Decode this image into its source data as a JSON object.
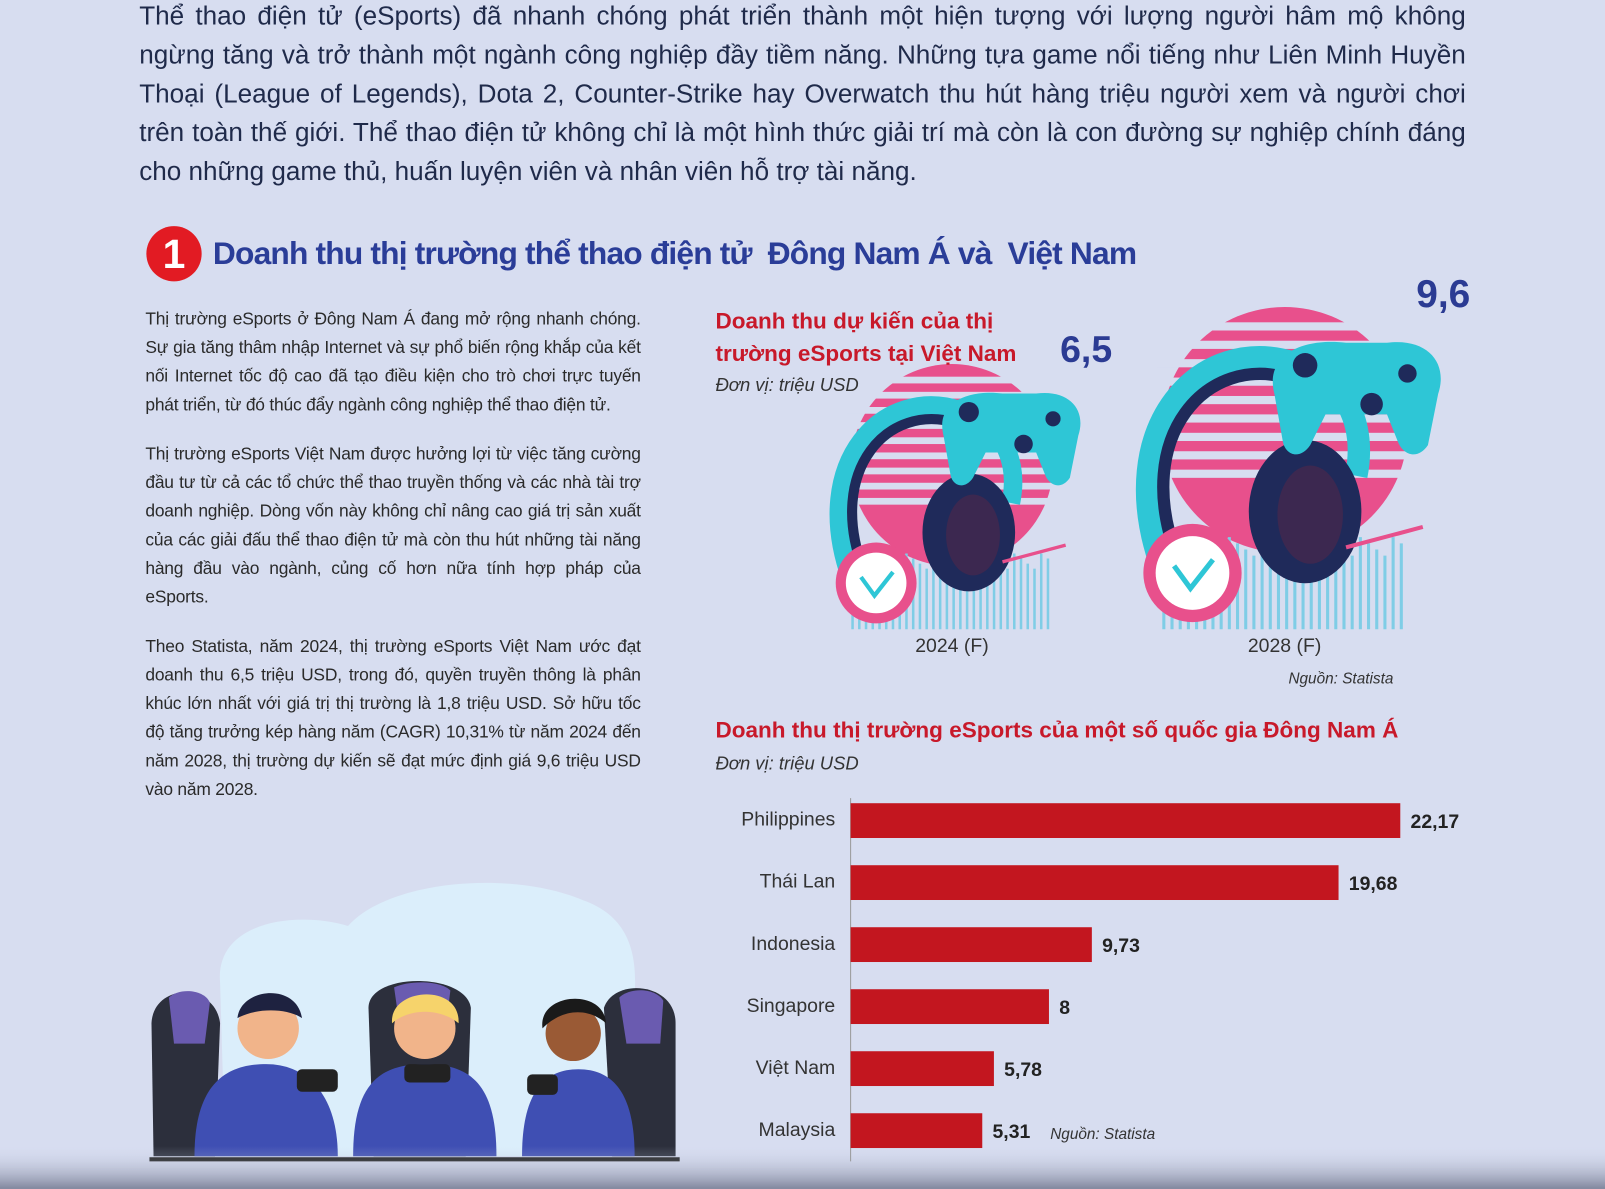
{
  "intro": "Thể thao điện tử (eSports) đã nhanh chóng phát triển thành một hiện tượng với lượng người hâm mộ không ngừng tăng và trở thành một ngành công nghiệp đầy tiềm năng. Những tựa game nổi tiếng như Liên Minh Huyền Thoại (League of Legends), Dota 2, Counter-Strike hay Overwatch thu hút hàng triệu người xem và người chơi trên toàn thế giới. Thể thao điện tử không chỉ là một hình thức giải trí mà còn là con đường sự nghiệp chính đáng cho những game thủ, huấn luyện viên và nhân viên hỗ trợ tài năng.",
  "section": {
    "number": "1",
    "title": "Doanh thu thị trường thể thao điện tử  Đông Nam Á và  Việt Nam"
  },
  "body": [
    "Thị trường eSports ở Đông Nam Á đang mở rộng nhanh chóng. Sự gia tăng thâm nhập Internet và sự phổ biến rộng khắp của kết nối Internet tốc độ cao đã tạo điều kiện cho trò chơi trực tuyến phát triển, từ đó thúc đẩy ngành công nghiệp thể thao điện tử.",
    "Thị trường eSports Việt Nam được hưởng lợi từ việc tăng cường đầu tư từ cả các tổ chức thể thao truyền thống và các nhà tài trợ doanh nghiệp. Dòng vốn này không chỉ nâng cao giá trị sản xuất của các giải đấu thể thao điện tử mà còn thu hút những tài năng hàng đầu vào ngành, củng cố hơn nữa tính hợp pháp của eSports.",
    "Theo Statista, năm 2024, thị trường eSports Việt Nam ước đạt doanh thu 6,5 triệu USD, trong đó, quyền truyền thông là phân khúc lớn nhất với giá trị thị trường là 1,8 triệu USD. Sở hữu tốc độ tăng trưởng kép hàng năm (CAGR) 10,31% từ năm 2024 đến năm 2028, thị trường dự kiến sẽ đạt mức định giá 9,6 triệu USD vào năm 2028."
  ],
  "chart_data": [
    {
      "type": "pictogram",
      "title": "Doanh thu dự kiến của thị trường eSports tại Việt Nam",
      "subtitle": "Đơn vị: triệu USD",
      "categories": [
        "2024 (F)",
        "2028 (F)"
      ],
      "values": [
        6.5,
        9.6
      ],
      "value_labels": [
        "6,5",
        "9,6"
      ],
      "color": "#2b3b93",
      "source": "Nguồn: Statista"
    },
    {
      "type": "hbar",
      "title": "Doanh thu thị trường eSports của một số quốc gia Đông Nam Á",
      "subtitle": "Đơn vị: triệu USD",
      "categories": [
        "Philippines",
        "Thái Lan",
        "Indonesia",
        "Singapore",
        "Việt Nam",
        "Malaysia"
      ],
      "values": [
        22.17,
        19.68,
        9.73,
        8,
        5.78,
        5.31
      ],
      "value_labels": [
        "22,17",
        "19,68",
        "9,73",
        "8",
        "5,78",
        "5,31"
      ],
      "color": "#c3161f",
      "source": "Nguồn: Statista"
    }
  ]
}
